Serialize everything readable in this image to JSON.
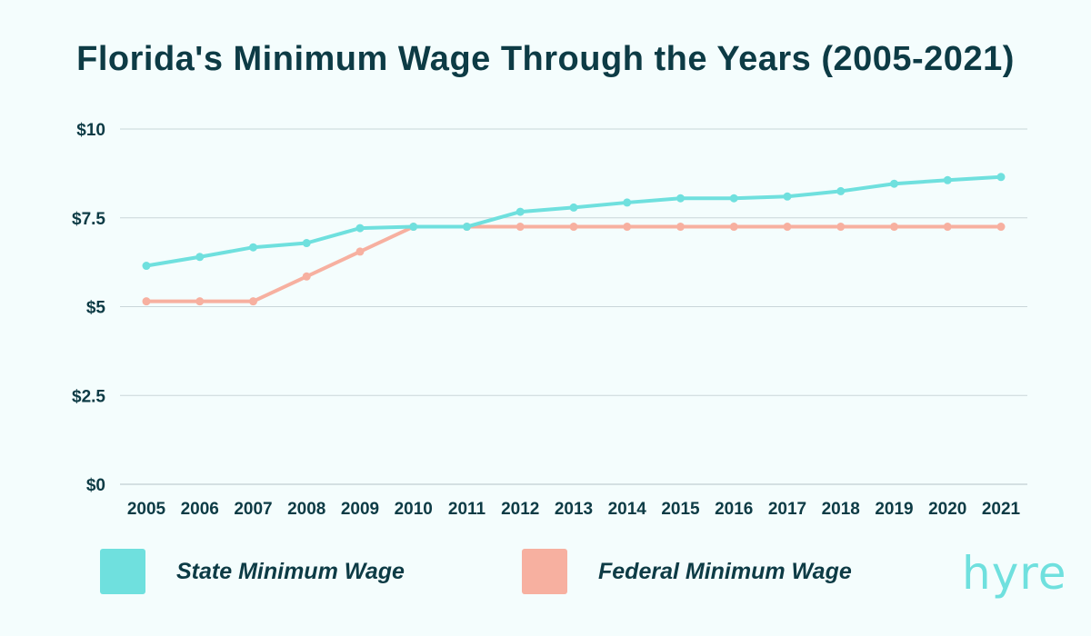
{
  "chart_data": {
    "type": "line",
    "title": "Florida's Minimum Wage Through the Years (2005-2021)",
    "xlabel": "",
    "ylabel": "",
    "categories": [
      "2005",
      "2006",
      "2007",
      "2008",
      "2009",
      "2010",
      "2011",
      "2012",
      "2013",
      "2014",
      "2015",
      "2016",
      "2017",
      "2018",
      "2019",
      "2020",
      "2021"
    ],
    "y_ticks": [
      {
        "value": 0,
        "label": "$0"
      },
      {
        "value": 2.5,
        "label": "$2.5"
      },
      {
        "value": 5,
        "label": "$5"
      },
      {
        "value": 7.5,
        "label": "$7.5"
      },
      {
        "value": 10,
        "label": "$10"
      }
    ],
    "ylim": [
      0,
      10
    ],
    "grid": true,
    "series": [
      {
        "name": "State Minimum Wage",
        "color": "#6fe0de",
        "values": [
          6.15,
          6.4,
          6.67,
          6.79,
          7.21,
          7.25,
          7.25,
          7.67,
          7.79,
          7.93,
          8.05,
          8.05,
          8.1,
          8.25,
          8.46,
          8.56,
          8.65
        ]
      },
      {
        "name": "Federal Minimum Wage",
        "color": "#f7b0a0",
        "values": [
          5.15,
          5.15,
          5.15,
          5.85,
          6.55,
          7.25,
          7.25,
          7.25,
          7.25,
          7.25,
          7.25,
          7.25,
          7.25,
          7.25,
          7.25,
          7.25,
          7.25
        ]
      }
    ],
    "legend_position": "bottom"
  },
  "legend": {
    "state_label": "State Minimum Wage",
    "federal_label": "Federal Minimum Wage"
  },
  "logo_text": "hyre",
  "colors": {
    "title": "#0d3b45",
    "state": "#6fe0de",
    "federal": "#f7b0a0",
    "grid": "#c9d6d9"
  }
}
